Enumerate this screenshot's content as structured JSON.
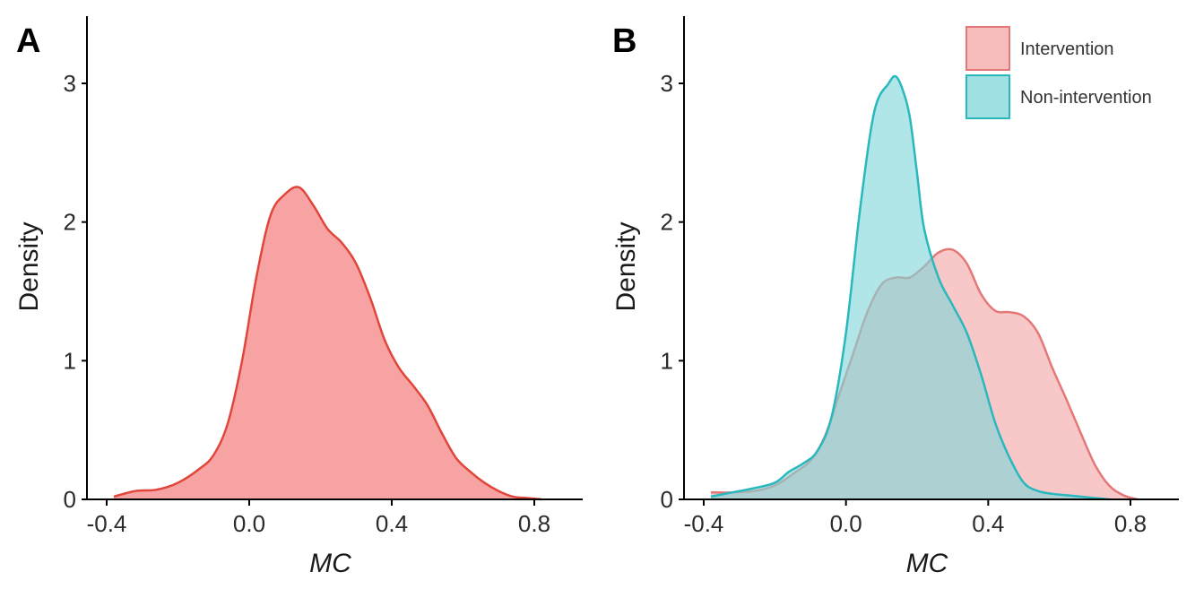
{
  "chart_data": [
    {
      "type": "area",
      "panel_label": "A",
      "xlabel": "MC",
      "ylabel": "Density",
      "xlim": [
        -0.42,
        0.96
      ],
      "ylim": [
        0,
        3.5
      ],
      "xticks": [
        -0.4,
        0.0,
        0.4,
        0.8
      ],
      "xtick_labels": [
        "-0.4",
        "0.0",
        "0.4",
        "0.8"
      ],
      "yticks": [
        0,
        1,
        2,
        3
      ],
      "ytick_labels": [
        "0",
        "1",
        "2",
        "3"
      ],
      "grid": false,
      "legend": "none",
      "series": [
        {
          "color_fill": "#f8a3a3",
          "color_line": "#e0463a",
          "x": [
            -0.38,
            -0.32,
            -0.26,
            -0.2,
            -0.14,
            -0.1,
            -0.06,
            -0.02,
            0.02,
            0.06,
            0.1,
            0.14,
            0.18,
            0.22,
            0.26,
            0.3,
            0.34,
            0.38,
            0.42,
            0.46,
            0.5,
            0.54,
            0.58,
            0.62,
            0.66,
            0.7,
            0.74,
            0.78,
            0.82
          ],
          "y": [
            0.02,
            0.06,
            0.07,
            0.12,
            0.22,
            0.32,
            0.55,
            1.0,
            1.6,
            2.05,
            2.2,
            2.25,
            2.12,
            1.95,
            1.85,
            1.7,
            1.45,
            1.15,
            0.95,
            0.82,
            0.68,
            0.48,
            0.3,
            0.2,
            0.12,
            0.06,
            0.02,
            0.01,
            0.0
          ]
        }
      ]
    },
    {
      "type": "area",
      "panel_label": "B",
      "xlabel": "MC",
      "ylabel": "Density",
      "xlim": [
        -0.42,
        0.96
      ],
      "ylim": [
        0,
        3.5
      ],
      "xticks": [
        -0.4,
        0.0,
        0.4,
        0.8
      ],
      "xtick_labels": [
        "-0.4",
        "0.0",
        "0.4",
        "0.8"
      ],
      "yticks": [
        0,
        1,
        2,
        3
      ],
      "ytick_labels": [
        "0",
        "1",
        "2",
        "3"
      ],
      "grid": false,
      "legend": "top-right",
      "series": [
        {
          "name": "Intervention",
          "color_fill": "#f4a6a6",
          "color_line": "#e47878",
          "x": [
            -0.38,
            -0.32,
            -0.26,
            -0.2,
            -0.14,
            -0.1,
            -0.06,
            -0.02,
            0.02,
            0.06,
            0.1,
            0.14,
            0.18,
            0.22,
            0.26,
            0.3,
            0.34,
            0.38,
            0.42,
            0.46,
            0.5,
            0.54,
            0.58,
            0.62,
            0.66,
            0.7,
            0.74,
            0.78,
            0.82
          ],
          "y": [
            0.05,
            0.05,
            0.06,
            0.1,
            0.2,
            0.28,
            0.45,
            0.75,
            1.05,
            1.35,
            1.55,
            1.6,
            1.6,
            1.68,
            1.78,
            1.8,
            1.7,
            1.48,
            1.36,
            1.35,
            1.32,
            1.2,
            0.95,
            0.72,
            0.48,
            0.25,
            0.1,
            0.03,
            0.0
          ]
        },
        {
          "name": "Non-intervention",
          "color_fill": "#7fd6d8",
          "color_line": "#29b8be",
          "x": [
            -0.38,
            -0.32,
            -0.26,
            -0.2,
            -0.16,
            -0.12,
            -0.08,
            -0.04,
            0.0,
            0.04,
            0.08,
            0.12,
            0.14,
            0.16,
            0.18,
            0.2,
            0.22,
            0.26,
            0.3,
            0.34,
            0.38,
            0.42,
            0.46,
            0.5,
            0.54,
            0.58,
            0.62,
            0.66,
            0.7,
            0.74
          ],
          "y": [
            0.02,
            0.05,
            0.08,
            0.12,
            0.2,
            0.26,
            0.35,
            0.6,
            1.2,
            2.1,
            2.8,
            3.0,
            3.05,
            2.95,
            2.75,
            2.35,
            1.95,
            1.6,
            1.4,
            1.2,
            0.9,
            0.55,
            0.3,
            0.12,
            0.06,
            0.04,
            0.03,
            0.02,
            0.01,
            0.0
          ]
        }
      ]
    }
  ]
}
